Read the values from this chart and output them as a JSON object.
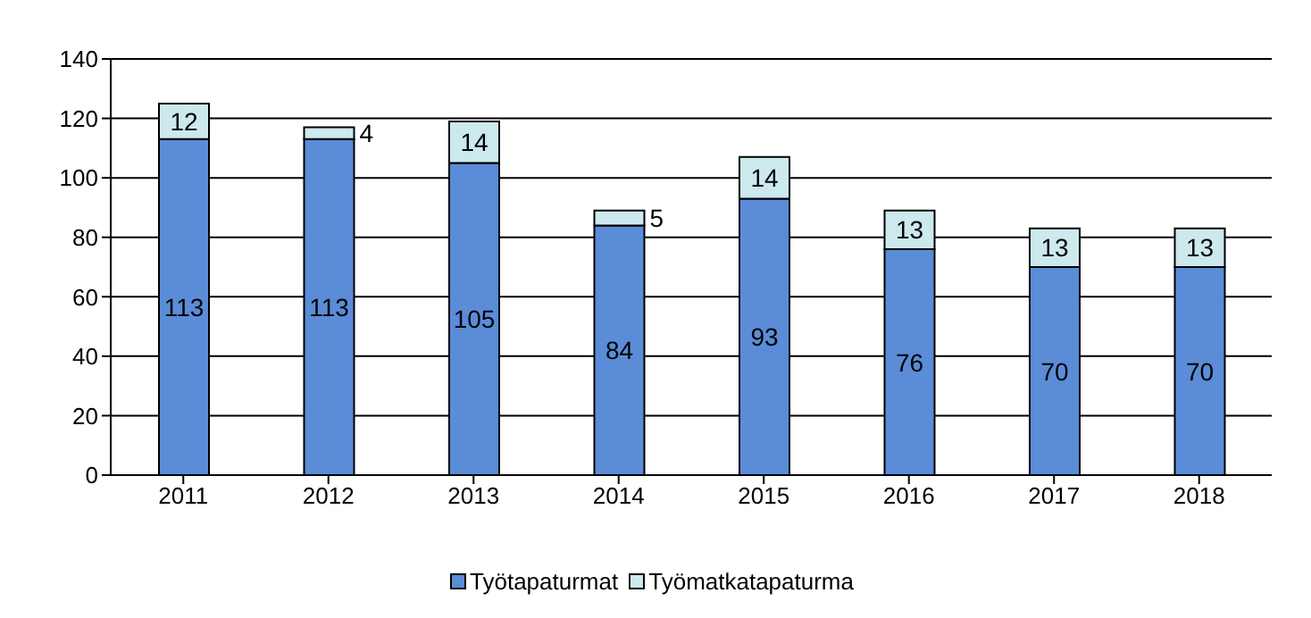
{
  "chart_data": {
    "type": "bar",
    "stacked": true,
    "categories": [
      "2011",
      "2012",
      "2013",
      "2014",
      "2015",
      "2016",
      "2017",
      "2018"
    ],
    "series": [
      {
        "name": "Työtapaturmat",
        "color": "#5b8cd7",
        "values": [
          113,
          113,
          105,
          84,
          93,
          76,
          70,
          70
        ]
      },
      {
        "name": "Työmatkatapaturma",
        "color": "#cce9ee",
        "values": [
          12,
          4,
          14,
          5,
          14,
          13,
          13,
          13
        ]
      }
    ],
    "ylim": [
      0,
      140
    ],
    "yticks": [
      0,
      20,
      40,
      60,
      80,
      100,
      120,
      140
    ],
    "grid": "y",
    "legend": "bottom",
    "data_labels": true
  }
}
